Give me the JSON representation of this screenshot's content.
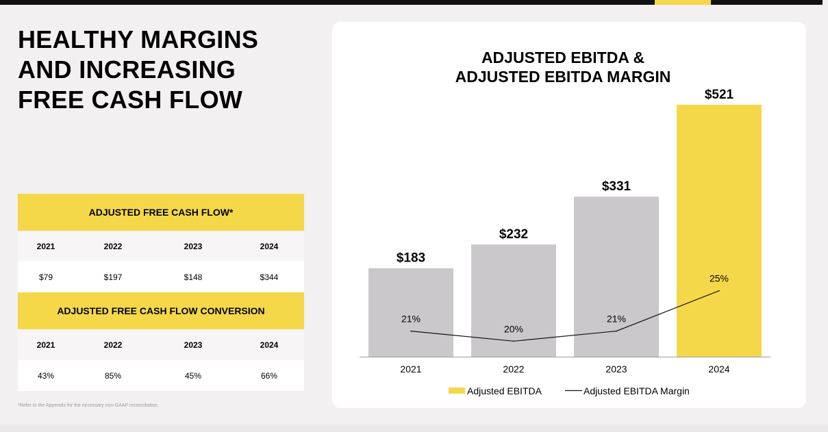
{
  "headline": {
    "line1": "HEALTHY MARGINS",
    "line2": "AND INCREASING",
    "line3": "FREE CASH FLOW"
  },
  "tables": [
    {
      "title": "ADJUSTED FREE CASH FLOW*",
      "years": [
        "2021",
        "2022",
        "2023",
        "2024"
      ],
      "values": [
        "$79",
        "$197",
        "$148",
        "$344"
      ]
    },
    {
      "title": "ADJUSTED FREE CASH FLOW CONVERSION",
      "years": [
        "2021",
        "2022",
        "2023",
        "2024"
      ],
      "values": [
        "43%",
        "85%",
        "45%",
        "66%"
      ]
    }
  ],
  "footnote": "*Refer to the Appendix for the necessary non-GAAP reconciliation.",
  "colors": {
    "accent": "#f5d84a",
    "bar_gray": "#cbc8cb",
    "line": "#111111"
  },
  "chart_data": {
    "type": "bar",
    "title_line1": "ADJUSTED EBITDA &",
    "title_line2": "ADJUSTED EBITDA MARGIN",
    "categories": [
      "2021",
      "2022",
      "2023",
      "2024"
    ],
    "series": [
      {
        "name": "Adjusted EBITDA",
        "type": "bar",
        "values": [
          183,
          232,
          331,
          521
        ],
        "labels": [
          "$183",
          "$232",
          "$331",
          "$521"
        ],
        "highlight_index": 3
      },
      {
        "name": "Adjusted EBITDA Margin",
        "type": "line",
        "values": [
          21,
          20,
          21,
          25
        ],
        "labels": [
          "21%",
          "20%",
          "21%",
          "25%"
        ]
      }
    ],
    "ylim": [
      0,
      521
    ],
    "legend": [
      "Adjusted EBITDA",
      "Adjusted EBITDA Margin"
    ],
    "legend_position": "bottom"
  }
}
